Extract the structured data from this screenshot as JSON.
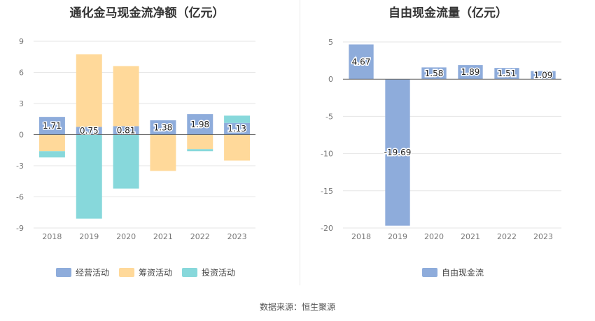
{
  "chart_data": [
    {
      "type": "bar",
      "stacked": true,
      "title": "通化金马现金流净额（亿元）",
      "categories": [
        "2018",
        "2019",
        "2020",
        "2021",
        "2022",
        "2023"
      ],
      "ylim": [
        -9,
        9
      ],
      "yticks": [
        9,
        6,
        3,
        0,
        -3,
        -6,
        -9
      ],
      "series": [
        {
          "name": "经营活动",
          "color": "#8eacdb",
          "values": [
            1.71,
            0.75,
            0.81,
            1.38,
            1.98,
            1.13
          ],
          "labels": [
            "1.71",
            "0.75",
            "0.81",
            "1.38",
            "1.98",
            "1.13"
          ]
        },
        {
          "name": "筹资活动",
          "color": "#ffd99a",
          "values": [
            -1.6,
            7.0,
            5.8,
            -3.5,
            -1.4,
            -2.5
          ]
        },
        {
          "name": "投资活动",
          "color": "#87d8db",
          "values": [
            -0.6,
            -8.1,
            -5.2,
            0,
            -0.2,
            0.7
          ]
        }
      ],
      "legend": "bottom",
      "grid": true
    },
    {
      "type": "bar",
      "title": "自由现金流量（亿元）",
      "categories": [
        "2018",
        "2019",
        "2020",
        "2021",
        "2022",
        "2023"
      ],
      "ylim": [
        -20,
        5
      ],
      "yticks": [
        5,
        0,
        -5,
        -10,
        -15,
        -20
      ],
      "series": [
        {
          "name": "自由现金流",
          "color": "#8eacdb",
          "values": [
            4.67,
            -19.69,
            1.58,
            1.89,
            1.51,
            1.09
          ],
          "labels": [
            "4.67",
            "-19.69",
            "1.58",
            "1.89",
            "1.51",
            "1.09"
          ]
        }
      ],
      "legend": "bottom",
      "grid": true
    }
  ],
  "source": "数据来源：恒生聚源"
}
